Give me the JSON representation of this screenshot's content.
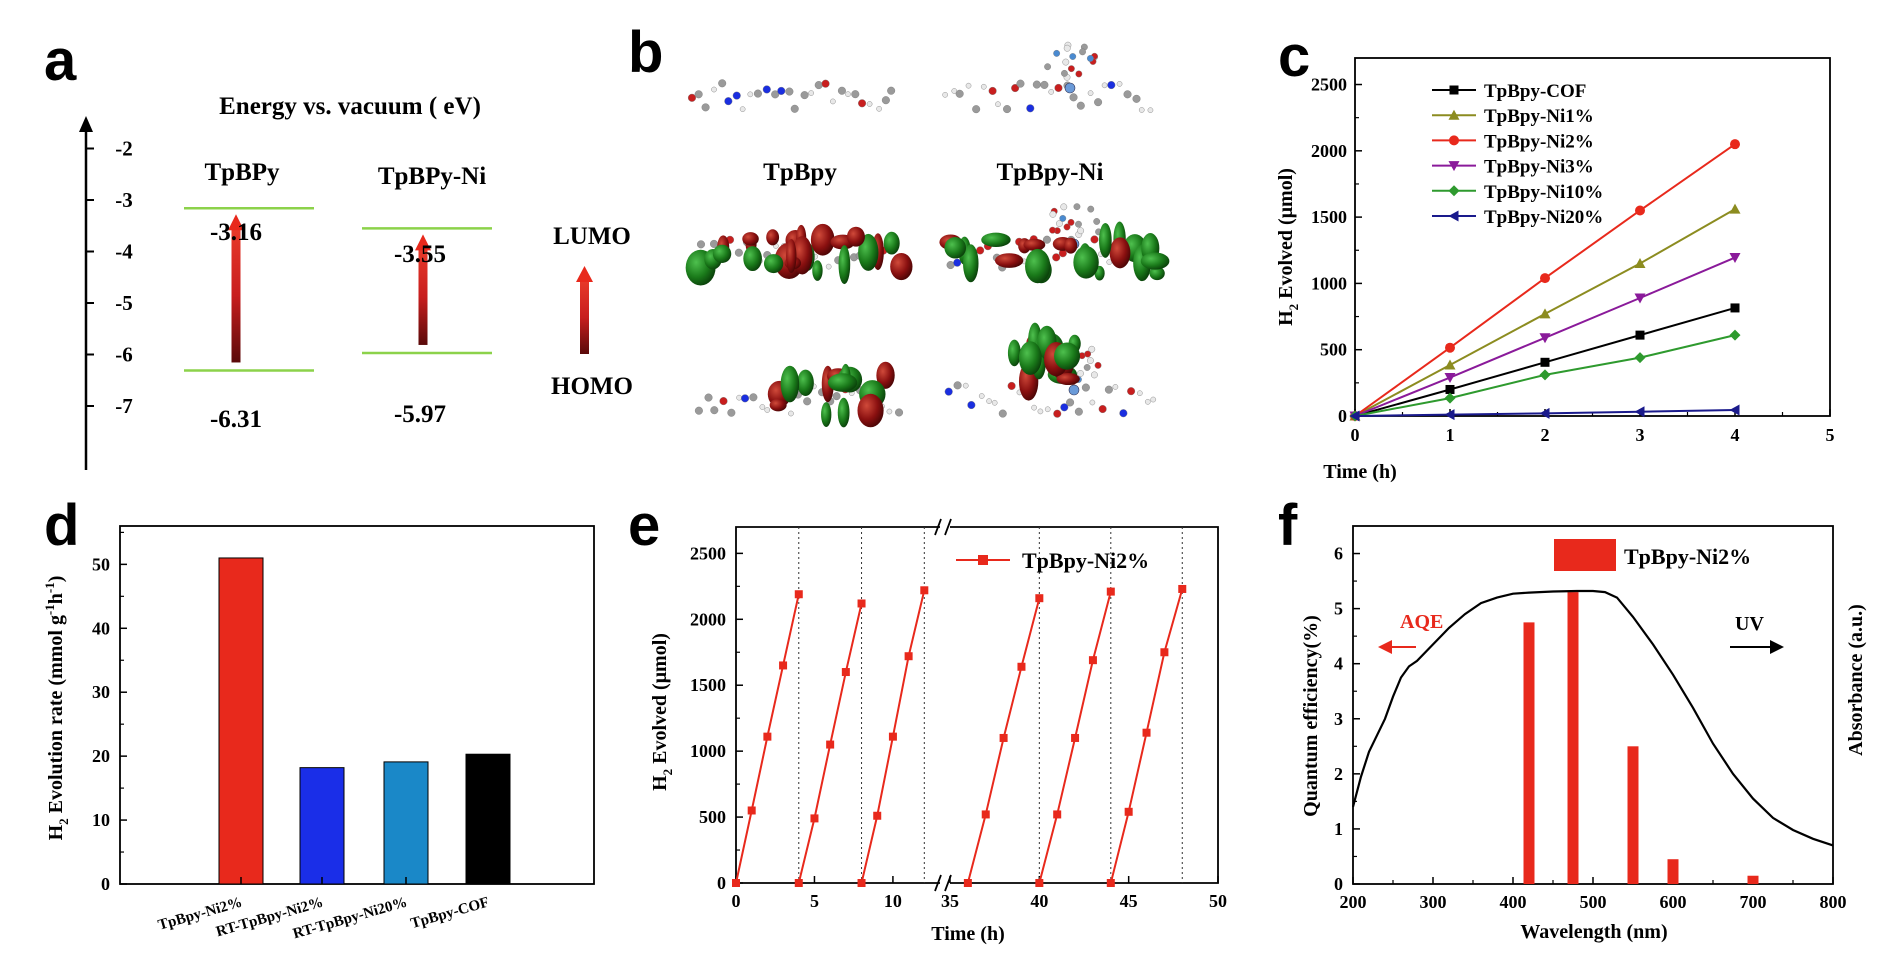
{
  "panel_labels": [
    "a",
    "b",
    "c",
    "d",
    "e",
    "f"
  ],
  "colors": {
    "red": "#e8291c",
    "olive": "#8c8c20",
    "purple": "#8a1a9a",
    "green": "#2e9a2e",
    "navy": "#1a1a8c",
    "black": "#000000",
    "blue": "#1a2ee8",
    "cyan": "#1a88c8",
    "level_line": "#8cd24a",
    "orbital_red": "#8a1010",
    "orbital_green": "#1a7a1a"
  },
  "panel_a": {
    "title": "Energy vs. vacuum ( eV)",
    "ticks": [
      "-2",
      "-3",
      "-4",
      "-5",
      "-6",
      "-7"
    ],
    "materials": [
      {
        "name": "TpBPy",
        "lumo": "-3.16",
        "homo": "-6.31",
        "lumo_value": -3.16,
        "homo_value": -6.31
      },
      {
        "name": "TpBPy-Ni",
        "lumo": "-3.55",
        "homo": "-5.97",
        "lumo_value": -3.55,
        "homo_value": -5.97
      }
    ],
    "lumo_label": "LUMO",
    "homo_label": "HOMO"
  },
  "panel_b": {
    "labels": [
      "TpBpy",
      "TpBpy-Ni"
    ]
  },
  "chart_data": [
    {
      "panel": "c",
      "type": "line",
      "xlabel": "Time (h)",
      "ylabel_main": "H",
      "ylabel_sub": "2",
      "ylabel_rest": " Evolved (μmol)",
      "xlim": [
        0,
        5
      ],
      "ylim": [
        0,
        2700
      ],
      "xticks": [
        0,
        1,
        2,
        3,
        4,
        5
      ],
      "yticks": [
        0,
        500,
        1000,
        1500,
        2000,
        2500
      ],
      "legend": "top-left",
      "x": [
        0,
        1,
        2,
        3,
        4
      ],
      "series": [
        {
          "name": "TpBpy-COF",
          "color": "#000000",
          "marker": "square",
          "values": [
            0,
            200,
            405,
            610,
            815
          ]
        },
        {
          "name": "TpBpy-Ni1%",
          "color": "#8c8c20",
          "marker": "triangle-up",
          "values": [
            0,
            385,
            770,
            1150,
            1560
          ]
        },
        {
          "name": "TpBpy-Ni2%",
          "color": "#e8291c",
          "marker": "circle",
          "values": [
            0,
            515,
            1040,
            1550,
            2050
          ]
        },
        {
          "name": "TpBpy-Ni3%",
          "color": "#8a1a9a",
          "marker": "triangle-down",
          "values": [
            0,
            290,
            590,
            890,
            1195
          ]
        },
        {
          "name": "TpBpy-Ni10%",
          "color": "#2e9a2e",
          "marker": "diamond",
          "values": [
            0,
            135,
            310,
            440,
            610
          ]
        },
        {
          "name": "TpBpy-Ni20%",
          "color": "#1a1a8c",
          "marker": "triangle-left",
          "values": [
            0,
            10,
            20,
            32,
            45
          ]
        }
      ]
    },
    {
      "panel": "d",
      "type": "bar",
      "ylabel_main": "H",
      "ylabel_sub": "2",
      "ylabel_rest": " Evolution rate (mmol g",
      "ylabel_sup1": "-1",
      "ylabel_mid": "h",
      "ylabel_sup2": "-1",
      "ylabel_end": ")",
      "ylim": [
        0,
        56
      ],
      "yticks": [
        0,
        10,
        20,
        30,
        40,
        50
      ],
      "categories": [
        "TpBpy-Ni2%",
        "RT-TpBpy-Ni2%",
        "RT-TpBpy-Ni20%",
        "TpBpy-COF"
      ],
      "values": [
        51,
        18.2,
        19.1,
        20.3
      ],
      "colors": [
        "#e8291c",
        "#1a2ee8",
        "#1a88c8",
        "#000000"
      ]
    },
    {
      "panel": "e",
      "type": "line",
      "xlabel": "Time (h)",
      "ylabel_main": "H",
      "ylabel_sub": "2",
      "ylabel_rest": " Evolved (μmol)",
      "ylim": [
        0,
        2700
      ],
      "yticks": [
        0,
        500,
        1000,
        1500,
        2000,
        2500
      ],
      "xticks_left": [
        0,
        5,
        10
      ],
      "xticks_right": [
        35,
        40,
        45,
        50
      ],
      "legend": "top-right",
      "series": [
        {
          "name": "TpBpy-Ni2%",
          "color": "#e8291c",
          "marker": "square",
          "cycles": [
            {
              "x": [
                0,
                1,
                2,
                3,
                4
              ],
              "y": [
                0,
                550,
                1110,
                1650,
                2190
              ]
            },
            {
              "x": [
                4,
                5,
                6,
                7,
                8
              ],
              "y": [
                0,
                490,
                1050,
                1600,
                2120
              ]
            },
            {
              "x": [
                8,
                9,
                10,
                11,
                12
              ],
              "y": [
                0,
                510,
                1110,
                1720,
                2220
              ]
            },
            {
              "x": [
                36,
                37,
                38,
                39,
                40
              ],
              "y": [
                0,
                520,
                1100,
                1640,
                2160
              ]
            },
            {
              "x": [
                40,
                41,
                42,
                43,
                44
              ],
              "y": [
                0,
                520,
                1100,
                1690,
                2210
              ]
            },
            {
              "x": [
                44,
                45,
                46,
                47,
                48
              ],
              "y": [
                0,
                540,
                1140,
                1750,
                2230
              ]
            }
          ]
        }
      ],
      "cycle_ends": [
        4,
        8,
        12,
        40,
        44,
        48
      ]
    },
    {
      "panel": "f",
      "type": "bar",
      "xlabel": "Wavelength (nm)",
      "ylabel": "Quantum efficiency(%)",
      "ylabel_right": "Absorbance (a.u.)",
      "xlim": [
        200,
        800
      ],
      "ylim": [
        0,
        6.5
      ],
      "xticks": [
        200,
        300,
        400,
        500,
        600,
        700,
        800
      ],
      "yticks": [
        0,
        1,
        2,
        3,
        4,
        5,
        6
      ],
      "legend": "top-center",
      "series_name": "TpBpy-Ni2%",
      "bars": [
        {
          "x": 420,
          "value": 4.75
        },
        {
          "x": 475,
          "value": 5.3
        },
        {
          "x": 550,
          "value": 2.5
        },
        {
          "x": 600,
          "value": 0.45
        },
        {
          "x": 700,
          "value": 0.15
        }
      ],
      "absorbance_curve": [
        [
          200,
          1.4
        ],
        [
          210,
          1.95
        ],
        [
          220,
          2.4
        ],
        [
          230,
          2.7
        ],
        [
          240,
          3.0
        ],
        [
          250,
          3.4
        ],
        [
          260,
          3.75
        ],
        [
          270,
          3.95
        ],
        [
          280,
          4.05
        ],
        [
          300,
          4.35
        ],
        [
          320,
          4.65
        ],
        [
          340,
          4.9
        ],
        [
          360,
          5.1
        ],
        [
          380,
          5.2
        ],
        [
          400,
          5.27
        ],
        [
          420,
          5.29
        ],
        [
          450,
          5.31
        ],
        [
          480,
          5.32
        ],
        [
          500,
          5.32
        ],
        [
          515,
          5.3
        ],
        [
          530,
          5.2
        ],
        [
          550,
          4.85
        ],
        [
          575,
          4.35
        ],
        [
          600,
          3.8
        ],
        [
          625,
          3.2
        ],
        [
          650,
          2.55
        ],
        [
          675,
          2.0
        ],
        [
          700,
          1.55
        ],
        [
          725,
          1.2
        ],
        [
          750,
          0.98
        ],
        [
          775,
          0.82
        ],
        [
          800,
          0.7
        ]
      ],
      "annotations": {
        "aqe": "AQE",
        "uv": "UV"
      }
    }
  ]
}
